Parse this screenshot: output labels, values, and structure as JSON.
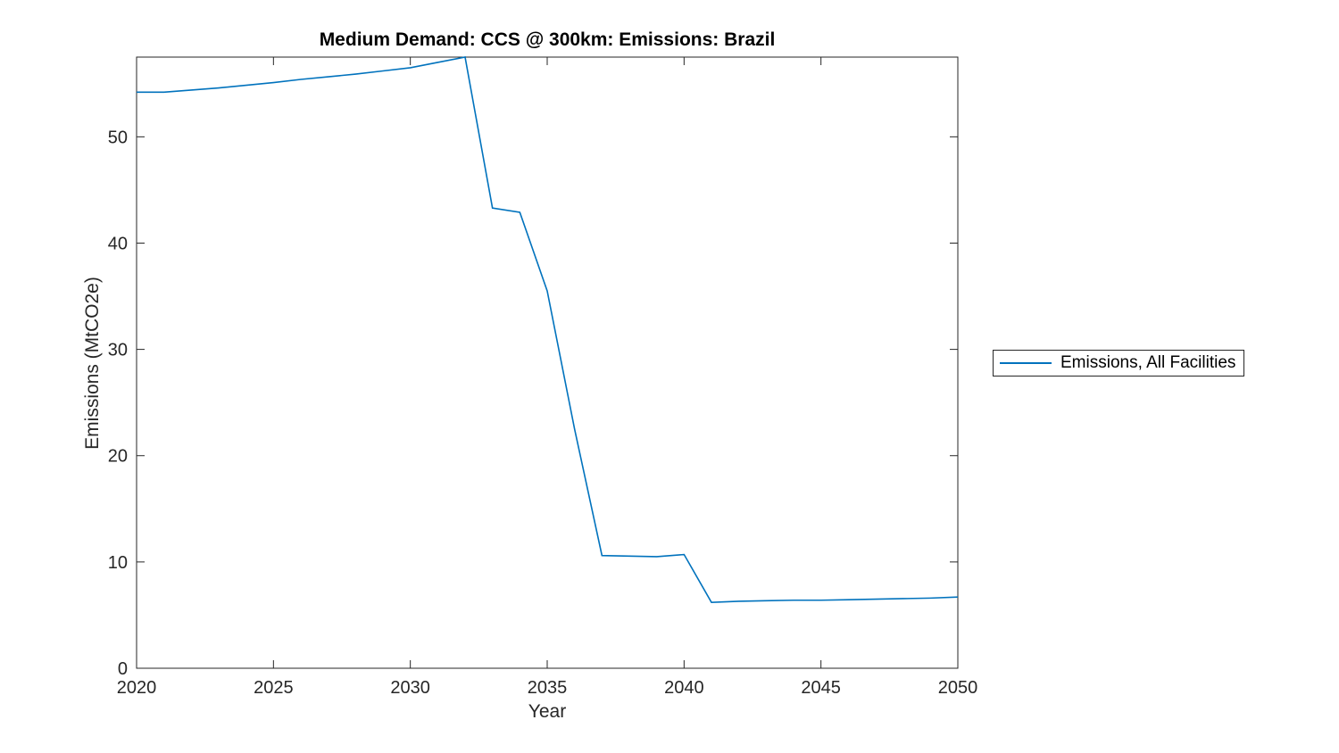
{
  "figure": {
    "background": "#ffffff",
    "axes_color": "#262626"
  },
  "chart_data": {
    "type": "line",
    "title": "Medium Demand: CCS @ 300km: Emissions: Brazil",
    "xlabel": "Year",
    "ylabel": "Emissions (MtCO2e)",
    "xlim": [
      2020,
      2050
    ],
    "ylim": [
      0,
      57.5
    ],
    "xticks": [
      2020,
      2025,
      2030,
      2035,
      2040,
      2045,
      2050
    ],
    "yticks": [
      0,
      10,
      20,
      30,
      40,
      50
    ],
    "grid": false,
    "legend_position": "right-outside",
    "x": [
      2020,
      2021,
      2022,
      2023,
      2024,
      2025,
      2026,
      2027,
      2028,
      2029,
      2030,
      2031,
      2032,
      2033,
      2034,
      2035,
      2036,
      2037,
      2038,
      2039,
      2040,
      2041,
      2042,
      2043,
      2044,
      2045,
      2046,
      2047,
      2048,
      2049,
      2050
    ],
    "series": [
      {
        "name": "Emissions, All Facilities",
        "color": "#0072BD",
        "values": [
          54.2,
          54.2,
          54.4,
          54.6,
          54.85,
          55.1,
          55.4,
          55.65,
          55.9,
          56.2,
          56.5,
          57.0,
          57.5,
          43.3,
          42.9,
          35.5,
          22.5,
          10.6,
          10.55,
          10.5,
          10.7,
          6.2,
          6.3,
          6.35,
          6.4,
          6.4,
          6.45,
          6.5,
          6.55,
          6.6,
          6.7
        ]
      }
    ]
  }
}
